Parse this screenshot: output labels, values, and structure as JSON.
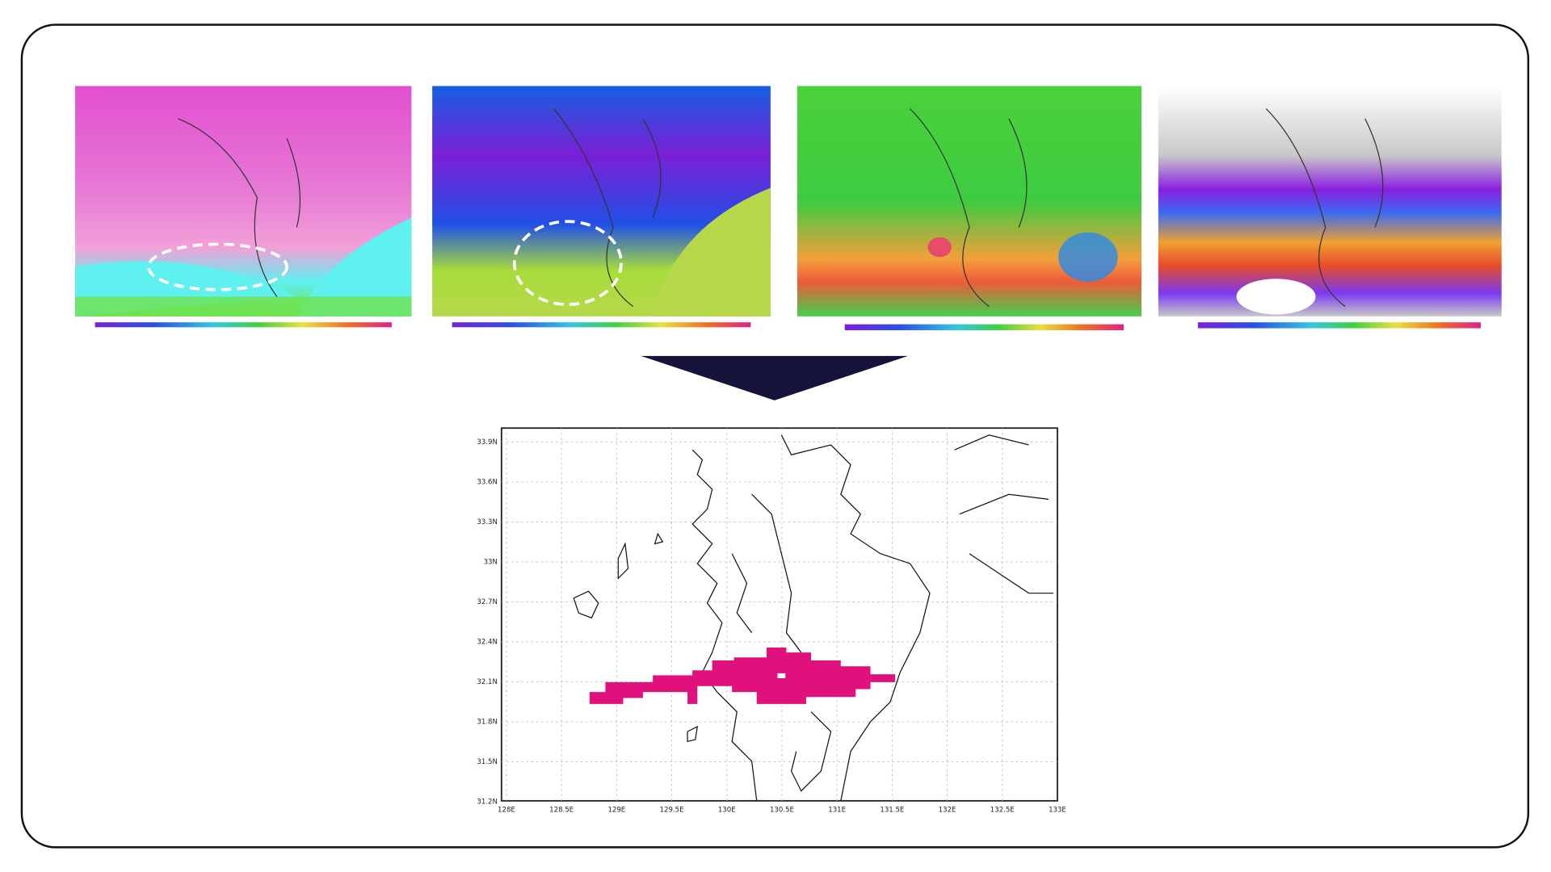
{
  "result_map": {
    "y_labels": [
      "33.9N",
      "33.6N",
      "33.3N",
      "33N",
      "32.7N",
      "32.4N",
      "32.1N",
      "31.8N",
      "31.5N",
      "31.2N"
    ],
    "x_labels": [
      "128E",
      "128.5E",
      "129E",
      "129.5E",
      "130E",
      "130.5E",
      "131E",
      "131.5E",
      "132E",
      "132.5E",
      "133E"
    ]
  }
}
